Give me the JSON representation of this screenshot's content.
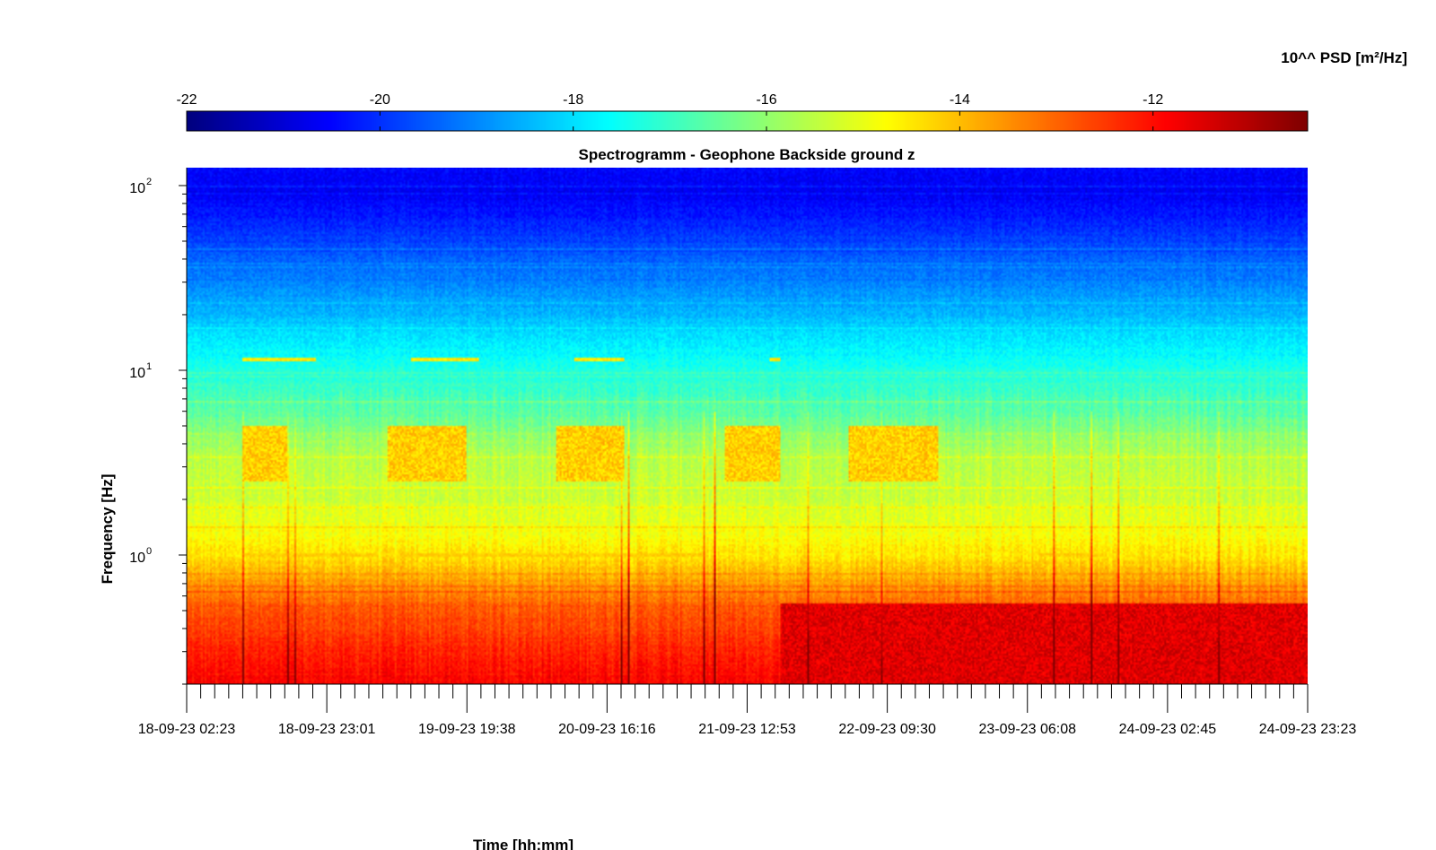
{
  "chart_data": {
    "type": "heatmap",
    "title": "Spectrogramm - Geophone Backside ground z",
    "xlabel": "Time [hh:mm]",
    "ylabel": "Frequency [Hz]",
    "colorbar": {
      "label": "10^^ PSD [m²/Hz]",
      "ticks": [
        -22,
        -20,
        -18,
        -16,
        -14,
        -12
      ],
      "range": [
        -22,
        -10.4
      ],
      "colormap": "jet"
    },
    "x_ticks": [
      "18-09-23 02:23",
      "18-09-23 23:01",
      "19-09-23 19:38",
      "20-09-23 16:16",
      "21-09-23 12:53",
      "22-09-23 09:30",
      "23-09-23 06:08",
      "24-09-23 02:45",
      "24-09-23 23:23"
    ],
    "x_minor_ticks_per_major": 10,
    "y_scale": "log",
    "y_range_hz": [
      0.2,
      125
    ],
    "y_ticks": [
      {
        "base": "10",
        "exp": "0",
        "value": 1
      },
      {
        "base": "10",
        "exp": "1",
        "value": 10
      },
      {
        "base": "10",
        "exp": "2",
        "value": 100
      }
    ],
    "grid": false,
    "profile_psd_log10": [
      {
        "freq_hz": 0.2,
        "psd": -11.8
      },
      {
        "freq_hz": 0.5,
        "psd": -12.8
      },
      {
        "freq_hz": 0.7,
        "psd": -13.6
      },
      {
        "freq_hz": 1.0,
        "psd": -14.5
      },
      {
        "freq_hz": 2.0,
        "psd": -15.3
      },
      {
        "freq_hz": 3.5,
        "psd": -15.6
      },
      {
        "freq_hz": 6.0,
        "psd": -16.6
      },
      {
        "freq_hz": 12.0,
        "psd": -17.6
      },
      {
        "freq_hz": 25.0,
        "psd": -18.8
      },
      {
        "freq_hz": 50.0,
        "psd": -19.8
      },
      {
        "freq_hz": 90.0,
        "psd": -20.7
      },
      {
        "freq_hz": 125.0,
        "psd": -20.5
      }
    ],
    "notable_features": [
      {
        "description": "elevated PSD near 3-4 Hz",
        "freq_range_hz": [
          2.5,
          5.0
        ],
        "psd": -14.2,
        "time_fractions": [
          [
            0.05,
            0.09
          ],
          [
            0.18,
            0.25
          ],
          [
            0.33,
            0.39
          ],
          [
            0.48,
            0.53
          ],
          [
            0.59,
            0.67
          ]
        ]
      },
      {
        "description": "tonal line near 11.5 Hz",
        "freq_hz": 11.5,
        "psd": -14.5,
        "time_fractions": [
          [
            0.05,
            0.115
          ],
          [
            0.2,
            0.26
          ],
          [
            0.345,
            0.39
          ],
          [
            0.52,
            0.53
          ]
        ]
      },
      {
        "description": "line near 1.0 Hz",
        "freq_hz": 1.0,
        "psd": -14.2,
        "time_fractions": [
          [
            0.05,
            0.17
          ],
          [
            0.19,
            0.46
          ],
          [
            0.76,
            0.82
          ]
        ]
      },
      {
        "description": "higher low-frequency energy in second half",
        "freq_range_hz": [
          0.2,
          0.55
        ],
        "psd": -11.5,
        "time_fractions": [
          [
            0.53,
            1.0
          ]
        ]
      }
    ]
  }
}
